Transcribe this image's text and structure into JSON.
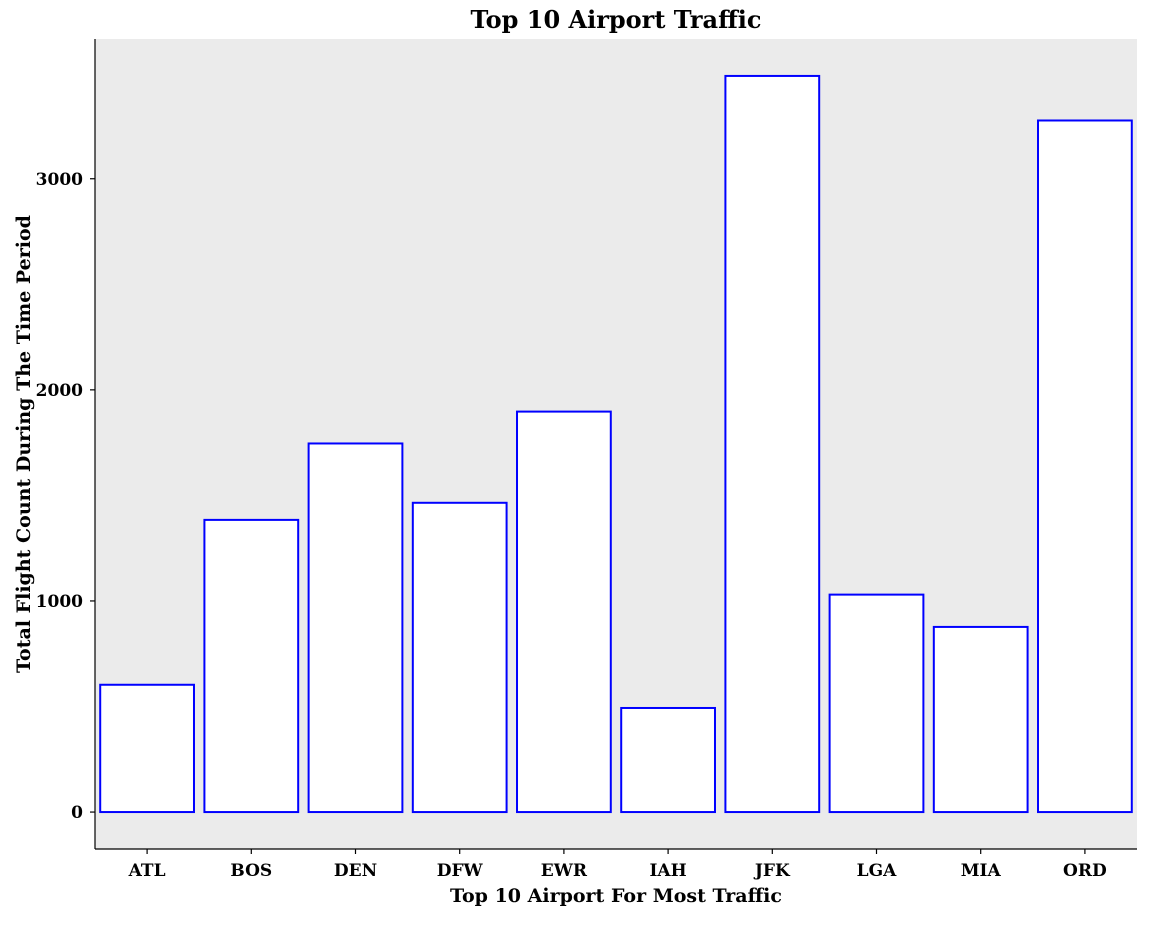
{
  "colors": {
    "panel_background": "#EBEBEB",
    "bar_fill": "#FFFFFF",
    "bar_outline": "#0000FF",
    "axis": "#000000"
  },
  "chart_data": {
    "type": "bar",
    "title": "Top 10 Airport Traffic",
    "xlabel": "Top 10 Airport For Most Traffic",
    "ylabel": "Total Flight Count During The Time Period",
    "categories": [
      "ATL",
      "BOS",
      "DEN",
      "DFW",
      "EWR",
      "IAH",
      "JFK",
      "LGA",
      "MIA",
      "ORD"
    ],
    "values": [
      603,
      1384,
      1746,
      1465,
      1897,
      493,
      3487,
      1030,
      877,
      3276
    ],
    "yticks": [
      0,
      1000,
      2000,
      3000
    ],
    "ytick_labels": [
      "0",
      "1000",
      "2000",
      "3000"
    ],
    "ylim": [
      -175,
      3662
    ],
    "grid": false,
    "legend": "none"
  }
}
